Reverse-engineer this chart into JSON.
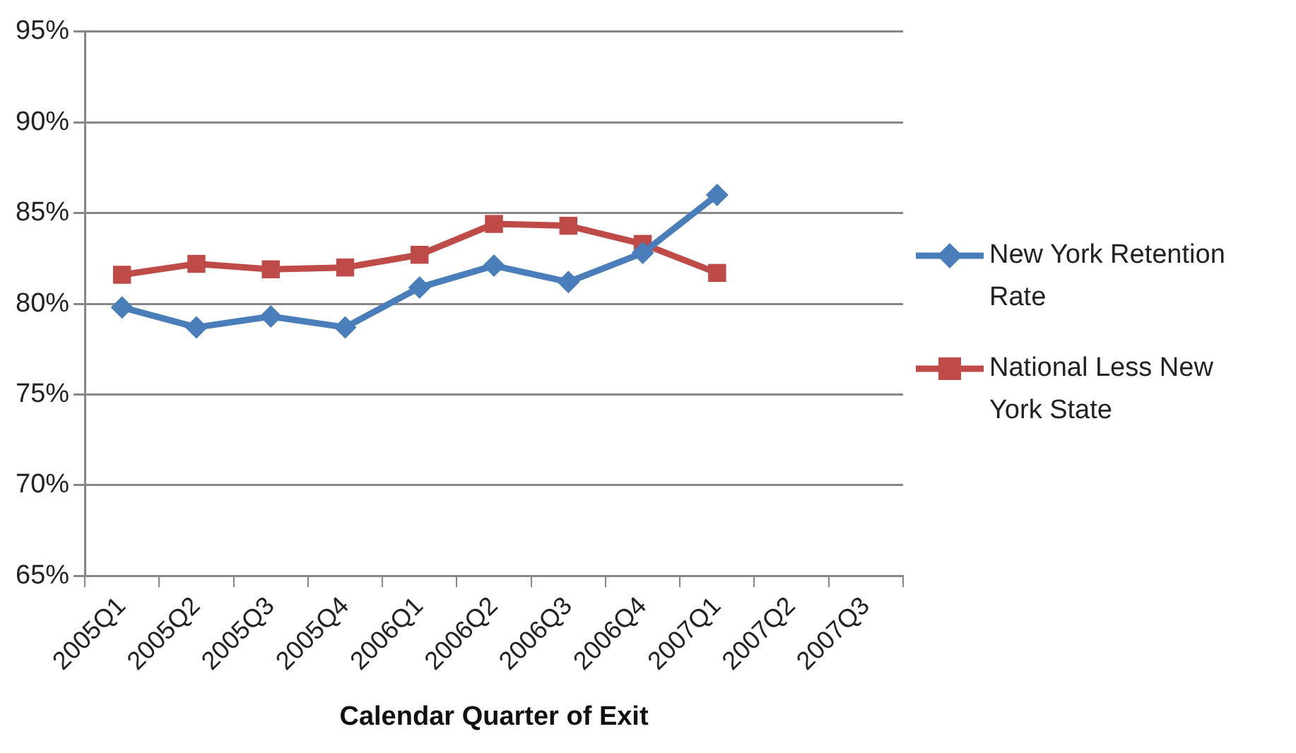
{
  "chart_data": {
    "type": "line",
    "xlabel": "Calendar Quarter of Exit",
    "categories": [
      "2005Q1",
      "2005Q2",
      "2005Q3",
      "2005Q4",
      "2006Q1",
      "2006Q2",
      "2006Q3",
      "2006Q4",
      "2007Q1",
      "2007Q2",
      "2007Q3"
    ],
    "series": [
      {
        "name": "New York Retention Rate",
        "color": "#4a7ebb",
        "marker": "diamond",
        "values": [
          79.8,
          78.7,
          79.3,
          78.7,
          80.9,
          82.1,
          81.2,
          82.8,
          86.0,
          null,
          null
        ]
      },
      {
        "name": "National Less New York State",
        "color": "#be4b48",
        "marker": "square",
        "values": [
          81.6,
          82.2,
          81.9,
          82.0,
          82.7,
          84.4,
          84.3,
          83.3,
          81.7,
          null,
          null
        ]
      }
    ],
    "ylim": [
      65,
      95
    ],
    "yticks": [
      {
        "value": 65,
        "label": "65%"
      },
      {
        "value": 70,
        "label": "70%"
      },
      {
        "value": 75,
        "label": "75%"
      },
      {
        "value": 80,
        "label": "80%"
      },
      {
        "value": 85,
        "label": "85%"
      },
      {
        "value": 90,
        "label": "90%"
      },
      {
        "value": 95,
        "label": "95%"
      }
    ],
    "grid": "y",
    "legend": "right",
    "line_style": "solid"
  }
}
